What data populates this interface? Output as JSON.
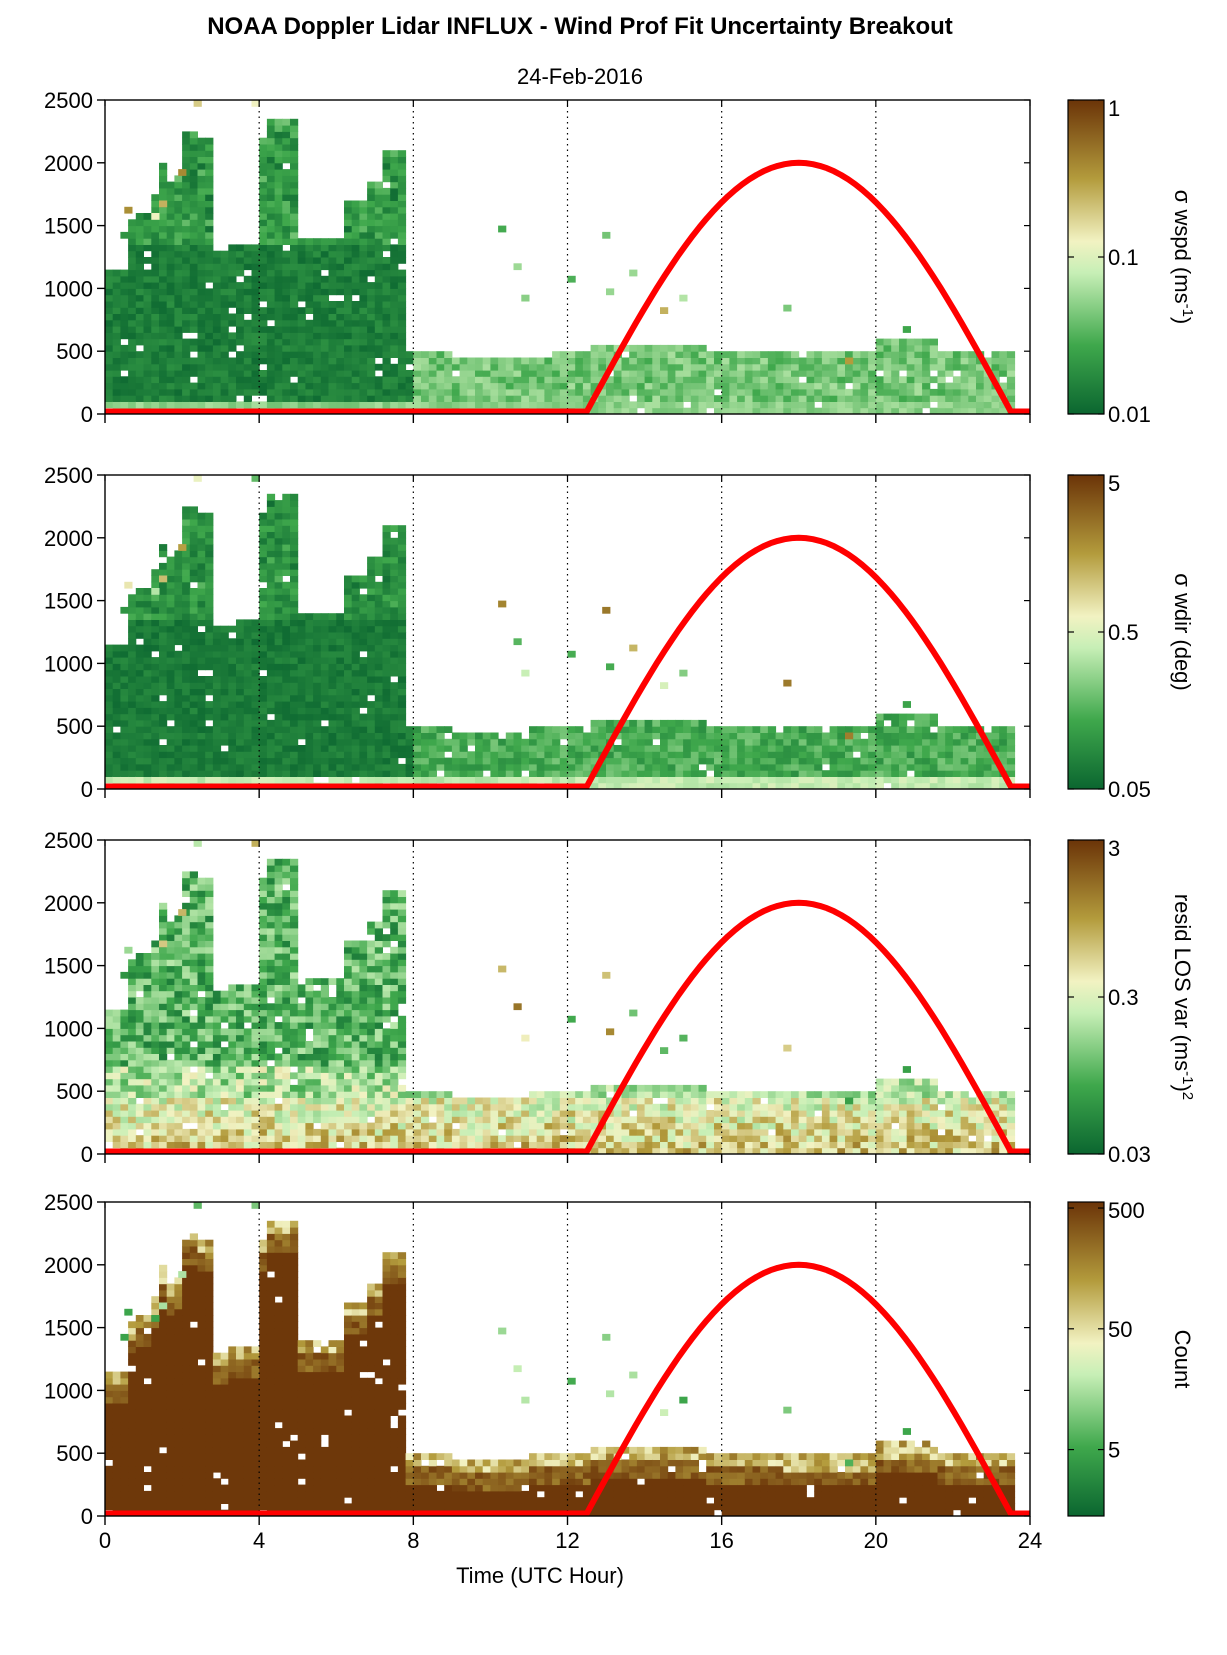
{
  "title": "NOAA Doppler Lidar INFLUX - Wind Prof Fit Uncertainty Breakout",
  "subtitle": "24-Feb-2016",
  "x_axis": {
    "label": "Time (UTC Hour)",
    "range": [
      0,
      24
    ],
    "ticks": [
      "0",
      "4",
      "8",
      "12",
      "16",
      "20",
      "24"
    ]
  },
  "y_axis": {
    "range": [
      0,
      2500
    ],
    "ticks": [
      "0",
      "500",
      "1000",
      "1500",
      "2000",
      "2500"
    ]
  },
  "colors": {
    "dark_green": "#0b6630",
    "mid_green": "#3fa84c",
    "light_green": "#c7efb6",
    "pale": "#f2f2c2",
    "tan": "#b39b3c",
    "dark_brown": "#6b3408",
    "sun_curve": "#ff0000"
  },
  "chart_data": [
    {
      "type": "heatmap",
      "colorbar": {
        "label_text": "σ wspd (ms",
        "label_sup": "-1",
        "label_end": ")",
        "ticks": [
          "1",
          "0.1",
          "0.01"
        ],
        "tick_values": [
          1,
          0.1,
          0.01
        ],
        "scale": "log"
      },
      "solar_elevation_curve": {
        "x": [
          0,
          12.5,
          18,
          23.5,
          24
        ],
        "y": [
          20,
          20,
          2000,
          20,
          20
        ]
      }
    },
    {
      "type": "heatmap",
      "colorbar": {
        "label_text": "σ wdir (deg)",
        "label_sup": "",
        "label_end": "",
        "ticks": [
          "5",
          "0.5",
          "0.05"
        ],
        "tick_values": [
          5,
          0.5,
          0.05
        ],
        "scale": "log"
      },
      "solar_elevation_curve": {
        "x": [
          0,
          12.5,
          18,
          23.5,
          24
        ],
        "y": [
          20,
          20,
          2000,
          20,
          20
        ]
      }
    },
    {
      "type": "heatmap",
      "colorbar": {
        "label_text": "resid LOS var (ms",
        "label_sup": "-1",
        "label_end": ")",
        "label_sup2": "2",
        "ticks": [
          "3",
          "0.3",
          "0.03"
        ],
        "tick_values": [
          3,
          0.3,
          0.03
        ],
        "scale": "log"
      },
      "solar_elevation_curve": {
        "x": [
          0,
          12.5,
          18,
          23.5,
          24
        ],
        "y": [
          20,
          20,
          2000,
          20,
          20
        ]
      }
    },
    {
      "type": "heatmap",
      "colorbar": {
        "label_text": "Count",
        "label_sup": "",
        "label_end": "",
        "ticks": [
          "500",
          "50",
          "5"
        ],
        "tick_values": [
          500,
          50,
          5
        ],
        "scale": "log"
      },
      "solar_elevation_curve": {
        "x": [
          0,
          12.5,
          18,
          23.5,
          24
        ],
        "y": [
          20,
          20,
          2000,
          20,
          20
        ]
      }
    }
  ]
}
